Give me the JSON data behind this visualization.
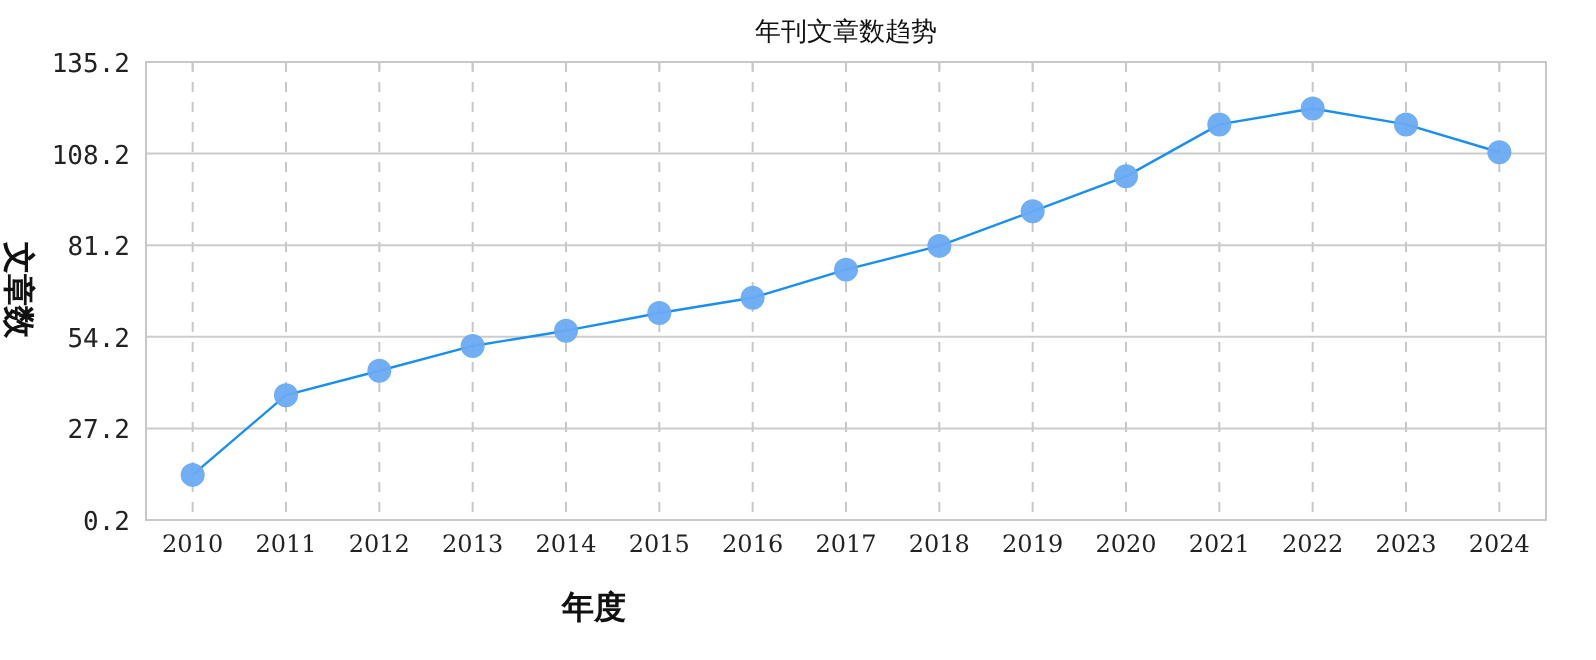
{
  "chart_data": {
    "type": "line",
    "title": "年刊文章数趋势",
    "xlabel": "年度",
    "ylabel": "文章数",
    "categories": [
      "2010",
      "2011",
      "2012",
      "2013",
      "2014",
      "2015",
      "2016",
      "2017",
      "2018",
      "2019",
      "2020",
      "2021",
      "2022",
      "2023",
      "2024"
    ],
    "series": [
      {
        "color": "#1a8ff0",
        "values": [
          13.5,
          37.0,
          44.2,
          51.5,
          56.0,
          61.2,
          65.7,
          74.0,
          81.0,
          91.2,
          101.5,
          116.8,
          121.5,
          116.8,
          108.6
        ]
      }
    ],
    "ylim": [
      0.2,
      135.2
    ],
    "yticks": [
      {
        "value": 0.2,
        "label": "0.2"
      },
      {
        "value": 27.2,
        "label": "27.2"
      },
      {
        "value": 54.2,
        "label": "54.2"
      },
      {
        "value": 81.2,
        "label": "81.2"
      },
      {
        "value": 108.2,
        "label": "108.2"
      },
      {
        "value": 135.2,
        "label": "135.2"
      }
    ],
    "grid": true,
    "marker": "circle",
    "line_style": "solid"
  }
}
